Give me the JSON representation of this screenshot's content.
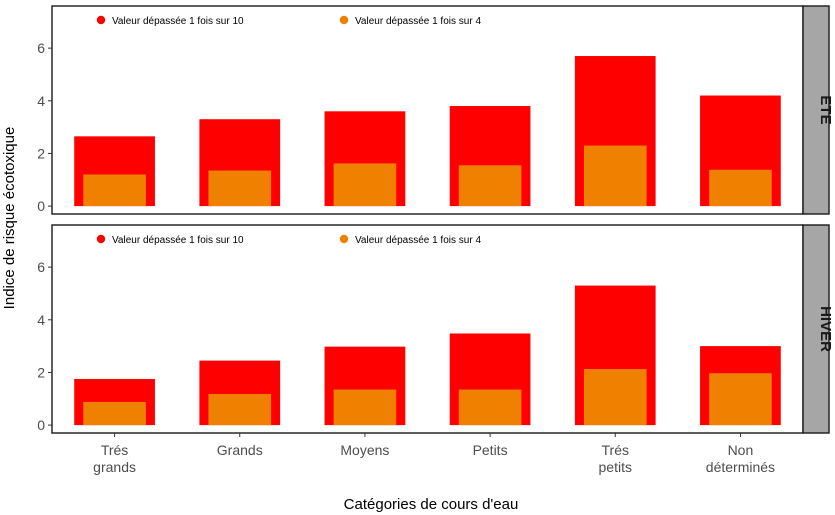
{
  "chart_data": {
    "type": "bar",
    "xlabel": "Catégories de cours d'eau",
    "ylabel": "Indice de risque écotoxique",
    "ylim": [
      -0.3,
      7.6
    ],
    "yticks": [
      0,
      2,
      4,
      6
    ],
    "categories": [
      [
        "Trés",
        "grands"
      ],
      [
        "Grands"
      ],
      [
        "Moyens"
      ],
      [
        "Petits"
      ],
      [
        "Trés",
        "petits"
      ],
      [
        "Non",
        "déterminés"
      ]
    ],
    "legend": [
      {
        "label": "Valeur dépassée 1 fois sur 10",
        "color": "#ff0000"
      },
      {
        "label": "Valeur dépassée 1 fois sur 4",
        "color": "#f08000"
      }
    ],
    "panels": [
      {
        "strip": "ETE",
        "series": [
          {
            "name": "Valeur dépassée 1 fois sur 10",
            "color": "#ff0000",
            "values": [
              2.65,
              3.3,
              3.6,
              3.8,
              5.7,
              4.2
            ]
          },
          {
            "name": "Valeur dépassée 1 fois sur 4",
            "color": "#f08000",
            "values": [
              1.2,
              1.35,
              1.62,
              1.55,
              2.3,
              1.38
            ]
          }
        ]
      },
      {
        "strip": "HIVER",
        "series": [
          {
            "name": "Valeur dépassée 1 fois sur 10",
            "color": "#ff0000",
            "values": [
              1.75,
              2.45,
              2.98,
              3.48,
              5.3,
              3.0
            ]
          },
          {
            "name": "Valeur dépassée 1 fois sur 4",
            "color": "#f08000",
            "values": [
              0.88,
              1.18,
              1.35,
              1.35,
              2.13,
              1.97
            ]
          }
        ]
      }
    ]
  }
}
